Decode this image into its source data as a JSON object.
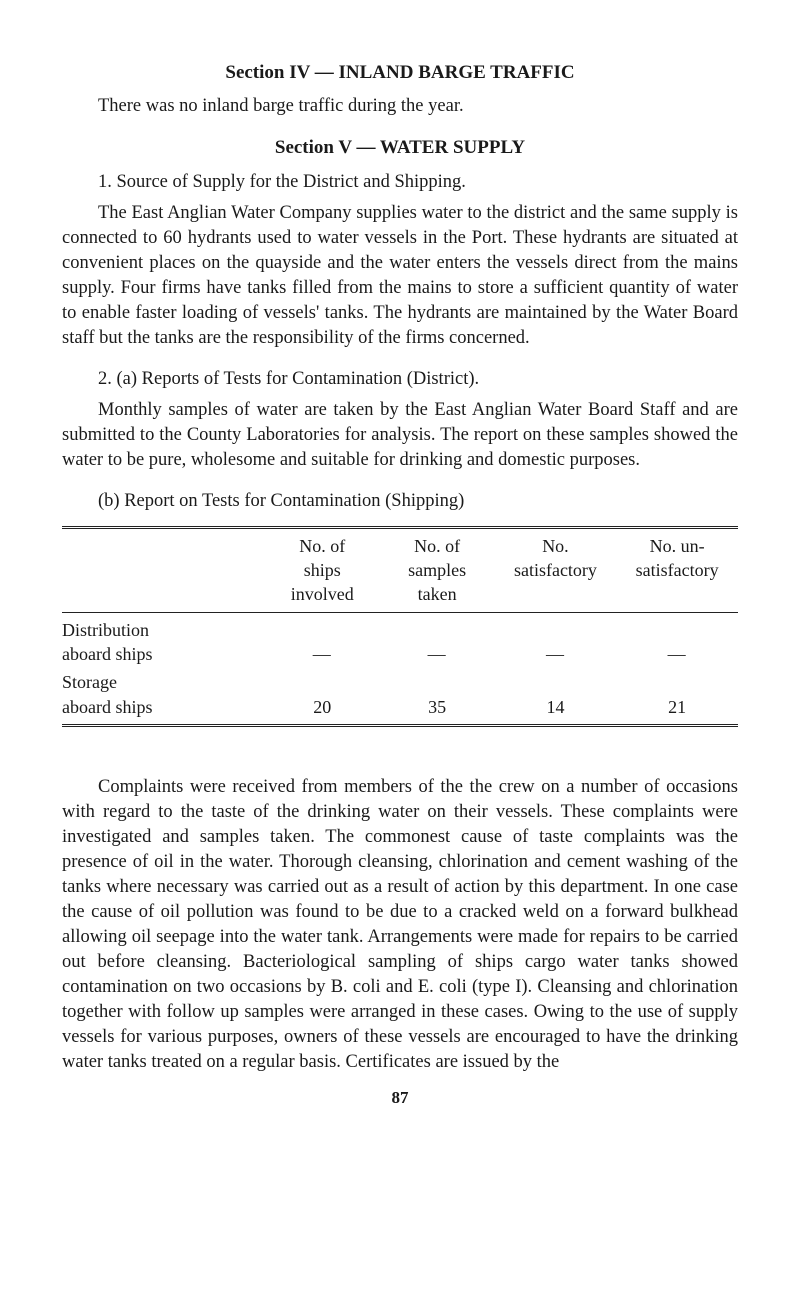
{
  "section4": {
    "heading": "Section IV — INLAND BARGE TRAFFIC",
    "para": "There was no inland barge traffic during the year."
  },
  "section5": {
    "heading": "Section V — WATER SUPPLY",
    "item1_lead": "1.   Source of Supply for the District and Shipping.",
    "item1_body": "The East Anglian Water Company supplies water to the district and the same supply is connected to 60 hydrants used to water vessels in the Port. These hydrants are situated at convenient places on the quayside and the water enters the vessels direct from the mains supply. Four firms have tanks filled from the mains to store a sufficient quantity of water to enable faster loading of vessels' tanks. The hydrants are maintained by the Water Board staff but the tanks are the responsibility of the firms concerned.",
    "item2a_lead": "2.   (a) Reports of Tests for Contamination (District).",
    "item2a_body": "Monthly samples of water are taken by the East Anglian Water Board Staff and are submitted to the County Laboratories for analysis. The report on these samples showed the water to be pure, wholesome and suitable for drinking and domestic purposes.",
    "item2b_lead": "(b) Report on Tests for Contamination (Shipping)"
  },
  "table": {
    "col_widths": [
      "30%",
      "17%",
      "17%",
      "18%",
      "18%"
    ],
    "head": {
      "c1": "",
      "c2": "No. of\nships\ninvolved",
      "c3": "No. of\nsamples\ntaken",
      "c4": "No.\nsatisfactory",
      "c5": "No. un-\nsatisfactory"
    },
    "rows": [
      {
        "label_l1": "Distribution",
        "label_l2": "aboard ships",
        "c2": "—",
        "c3": "—",
        "c4": "—",
        "c5": "—"
      },
      {
        "label_l1": "Storage",
        "label_l2": "aboard ships",
        "c2": "20",
        "c3": "35",
        "c4": "14",
        "c5": "21"
      }
    ]
  },
  "complaints_para": "Complaints were received from members of the the crew on a number of occasions with regard to the taste of the drinking water on their vessels. These complaints were investigated and samples taken. The commonest cause of taste complaints was the presence of oil in the water. Thorough cleansing, chlorination and cement washing of the tanks where necessary was carried out as a result of action by this department. In one case the cause of oil pollution was found to be due to a cracked weld on a forward bulkhead allowing oil seepage into the water tank. Arrangements were made for repairs to be carried out before cleansing. Bacteriological sampling of ships cargo water tanks showed contamination on two occasions by B. coli and E. coli (type I). Cleansing and chlorination together with follow up samples were arranged in these cases. Owing to the use of supply vessels for various purposes, owners of these vessels are encouraged to have the drinking water tanks treated on a regular basis. Certificates are issued by the",
  "page_number": "87",
  "colors": {
    "text": "#1a1a1a",
    "rule": "#222222",
    "background": "#ffffff"
  },
  "typography": {
    "body_fontsize_pt": 14,
    "heading_fontsize_pt": 14.5,
    "family": "Times New Roman, serif"
  }
}
